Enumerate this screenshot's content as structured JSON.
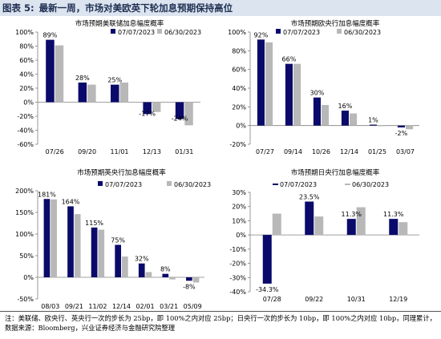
{
  "figure": {
    "label": "图表 5:",
    "title": "最新一周，市场对美欧英下轮加息预期保持高位"
  },
  "notes": {
    "note": "注：美联储、欧央行、英央行一次的步长为 25bp，即 100%之内对应 25bp；日央行一次的步长为 10bp，即 100%之内对应 10bp，同理累计，",
    "source": "数据来源：Bloomberg，兴业证券经济与金融研究院整理"
  },
  "colors": {
    "series1": "#0a0a6b",
    "series2": "#b8b8b8",
    "header_bg": "#dbe4ef",
    "header_text": "#1f2f52"
  },
  "chart_data": [
    {
      "type": "bar",
      "title": "市场预期美联储加息幅度概率",
      "categories": [
        "07/26",
        "09/20",
        "11/01",
        "12/13",
        "01/31"
      ],
      "series": [
        {
          "name": "07/07/2023",
          "values": [
            89,
            28,
            25,
            -17,
            -24
          ]
        },
        {
          "name": "06/30/2023",
          "values": [
            81,
            25,
            28,
            -14,
            -33
          ]
        }
      ],
      "data_labels": [
        "89%",
        "28%",
        "25%",
        "-17%",
        "-24%"
      ],
      "ylim": [
        -60,
        100
      ],
      "yticks": [
        -60,
        -40,
        -20,
        0,
        20,
        40,
        60,
        80,
        100
      ],
      "legend": "top"
    },
    {
      "type": "bar",
      "title": "市场预期欧央行加息幅度概率",
      "categories": [
        "07/27",
        "09/14",
        "10/26",
        "12/14",
        "01/25",
        "03/07"
      ],
      "series": [
        {
          "name": "07/07/2023",
          "values": [
            92,
            66,
            30,
            16,
            1,
            -2
          ]
        },
        {
          "name": "06/30/2023",
          "values": [
            89,
            66,
            22,
            13,
            0,
            -4
          ]
        }
      ],
      "data_labels": [
        "92%",
        "66%",
        "30%",
        "16%",
        "1%",
        "-2%"
      ],
      "ylim": [
        -20,
        100
      ],
      "yticks": [
        -20,
        0,
        20,
        40,
        60,
        80,
        100
      ],
      "legend": "top-right"
    },
    {
      "type": "bar",
      "title": "市场预期英央行加息幅度概率",
      "categories": [
        "08/03",
        "09/21",
        "11/02",
        "12/14",
        "02/01",
        "03/21",
        "05/09"
      ],
      "series": [
        {
          "name": "07/07/2023",
          "values": [
            181,
            164,
            115,
            75,
            32,
            8,
            -8
          ]
        },
        {
          "name": "06/30/2023",
          "values": [
            180,
            146,
            110,
            48,
            12,
            -5,
            -12
          ]
        }
      ],
      "data_labels": [
        "181%",
        "164%",
        "115%",
        "75%",
        "32%",
        "8%",
        "-8%"
      ],
      "ylim": [
        -50,
        200
      ],
      "yticks": [
        -50,
        0,
        50,
        100,
        150,
        200
      ],
      "legend": "top"
    },
    {
      "type": "bar",
      "title": "市场预期日央行加息幅度概率",
      "categories": [
        "07/28",
        "09/22",
        "10/31",
        "12/19"
      ],
      "series": [
        {
          "name": "07/07/2023",
          "values": [
            -34.3,
            23.5,
            11.3,
            11.3
          ]
        },
        {
          "name": "06/30/2023",
          "values": [
            15,
            13,
            19.5,
            9
          ]
        }
      ],
      "data_labels": [
        "-34.3%",
        "23.5%",
        "11.3%",
        "11.3%"
      ],
      "ylim": [
        -40,
        30
      ],
      "yticks": [
        -40,
        -30,
        -20,
        -10,
        0,
        10,
        20,
        30
      ],
      "legend": "top"
    }
  ]
}
